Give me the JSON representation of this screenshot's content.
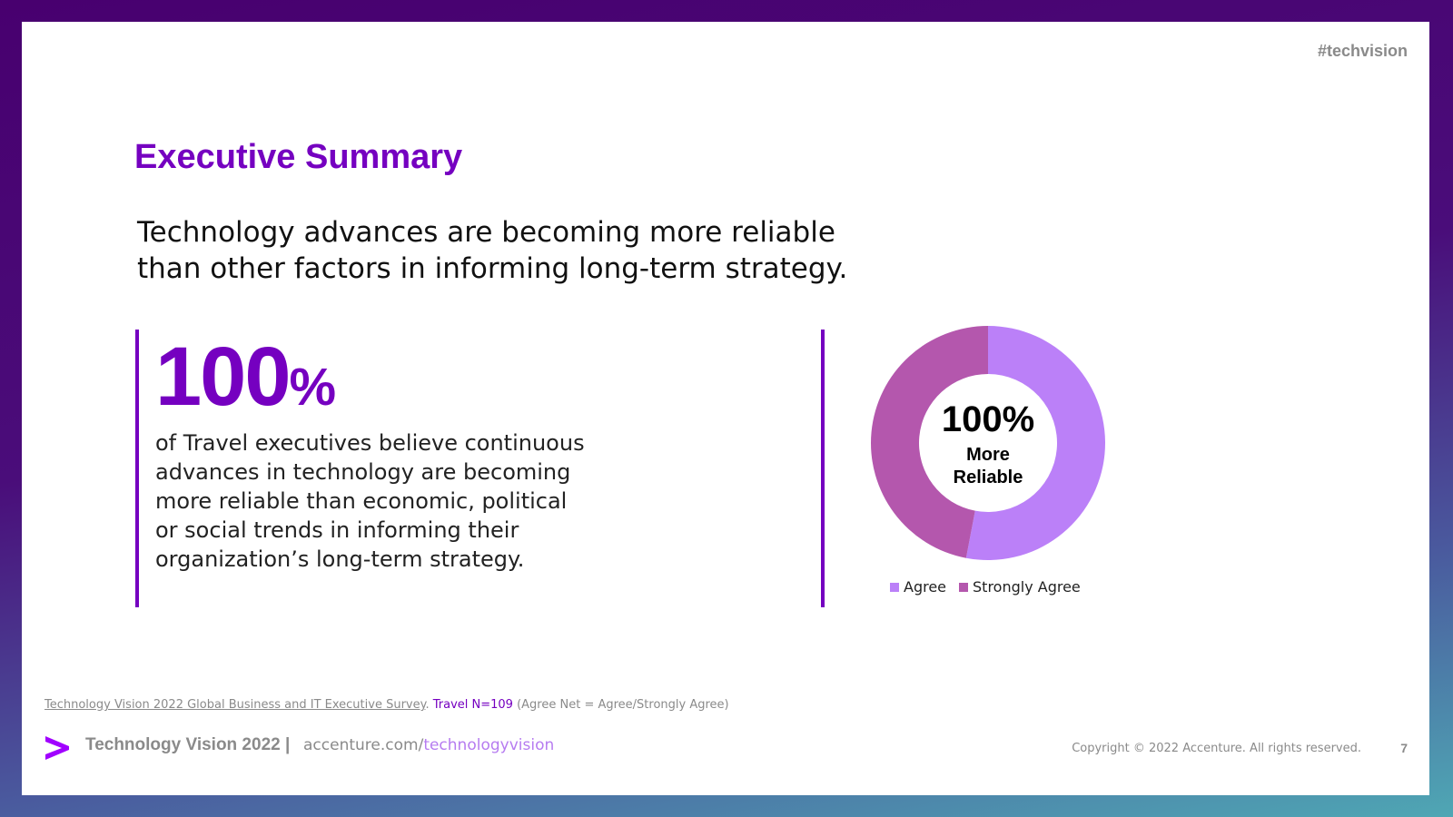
{
  "header": {
    "hashtag": "#techvision"
  },
  "title": "Executive Summary",
  "headline_lines": [
    "Technology advances are becoming more reliable",
    "than other factors in informing long-term strategy."
  ],
  "stat": {
    "number": "100",
    "percent_sign": "%",
    "description_lines": [
      "of Travel executives believe continuous",
      "advances in technology are becoming",
      "more reliable than economic, political",
      "or social trends in informing their",
      "organization’s long-term strategy."
    ]
  },
  "chart_data": {
    "type": "pie",
    "donut": true,
    "center_value": "100%",
    "center_label_lines": [
      "More",
      "Reliable"
    ],
    "series": [
      {
        "name": "Agree",
        "value": 53,
        "color": "#bb80f8"
      },
      {
        "name": "Strongly Agree",
        "value": 47,
        "color": "#b457ad"
      }
    ],
    "legend_position": "bottom"
  },
  "source": {
    "link_text": "Technology Vision 2022 Global Business and IT Executive Survey",
    "period": ".",
    "sample": "Travel N=109",
    "note": "(Agree Net = Agree/Strongly Agree)"
  },
  "footer": {
    "logo_icon": "accenture-chevron-icon",
    "brand": "Technology Vision 2022",
    "separator": "|",
    "url_base": "accenture.com/",
    "url_path": "technologyvision",
    "copyright": "Copyright © 2022 Accenture. All rights reserved.",
    "page_number": "7"
  },
  "colors": {
    "accent": "#7500c0",
    "agree": "#bb80f8",
    "strongly_agree": "#b457ad",
    "muted_text": "#8a8a8a"
  }
}
